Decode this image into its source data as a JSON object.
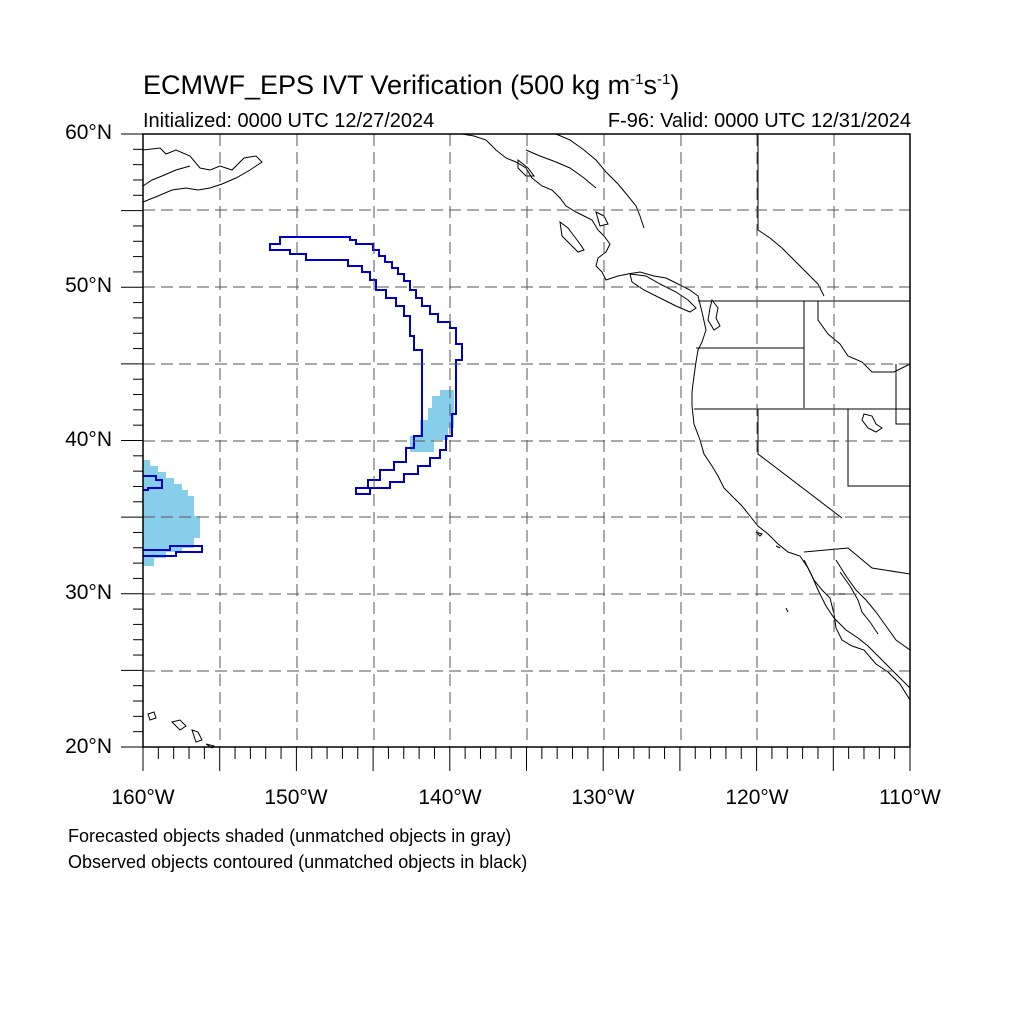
{
  "title": {
    "prefix": "ECMWF_EPS IVT Verification (500 kg m",
    "exp1": "-1",
    "mid": "s",
    "exp2": "-1",
    "suffix": ")"
  },
  "subtitle_left": "Initialized: 0000 UTC 12/27/2024",
  "subtitle_right": "F-96: Valid: 0000 UTC 12/31/2024",
  "lat_labels": [
    "60°N",
    "50°N",
    "40°N",
    "30°N",
    "20°N"
  ],
  "lon_labels": [
    "160°W",
    "150°W",
    "140°W",
    "130°W",
    "120°W",
    "110°W"
  ],
  "footnotes": [
    "Forecasted objects shaded (unmatched objects in gray)",
    "Observed objects contoured (unmatched objects in black)"
  ],
  "map": {
    "lon_range": [
      -160,
      -110
    ],
    "lat_range": [
      20,
      60
    ],
    "grid_spacing_deg": 5,
    "grid_style": "dashed",
    "forecast_fill_color": "#87ceeb",
    "observed_contour_color": "#0000cc",
    "land_outline_color": "#000000"
  }
}
